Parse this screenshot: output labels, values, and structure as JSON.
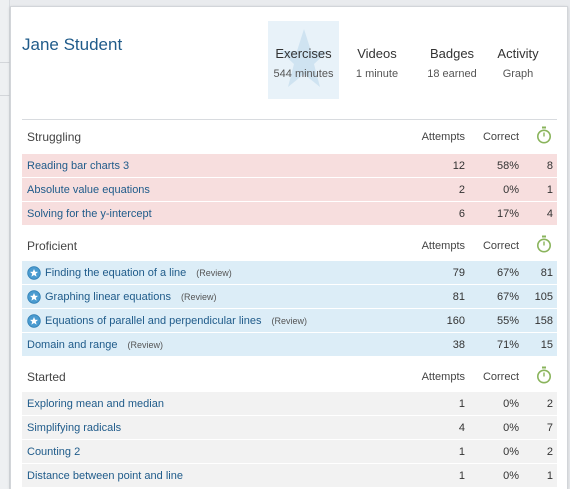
{
  "student": {
    "name": "Jane Student"
  },
  "tabs": [
    {
      "label": "Exercises",
      "sub": "544 minutes",
      "active": true
    },
    {
      "label": "Videos",
      "sub": "1 minute",
      "active": false
    },
    {
      "label": "Badges",
      "sub": "18 earned",
      "active": false
    },
    {
      "label": "Activity",
      "sub": "Graph",
      "active": false
    }
  ],
  "columns": {
    "attempts": "Attempts",
    "correct": "Correct",
    "time_icon": "stopwatch-icon"
  },
  "colors": {
    "struggling": "#f7dede",
    "proficient": "#dcedf7",
    "started": "#f2f2f2",
    "link": "#1f5b8a",
    "stopwatch": "#8ab45c"
  },
  "sections": {
    "struggling": {
      "title": "Struggling",
      "rows": [
        {
          "name": "Reading bar charts 3",
          "review": "",
          "attempts": "12",
          "correct": "58%",
          "time": "8"
        },
        {
          "name": "Absolute value equations",
          "review": "",
          "attempts": "2",
          "correct": "0%",
          "time": "1"
        },
        {
          "name": "Solving for the y-intercept",
          "review": "",
          "attempts": "6",
          "correct": "17%",
          "time": "4"
        }
      ]
    },
    "proficient": {
      "title": "Proficient",
      "rows": [
        {
          "name": "Finding the equation of a line",
          "review": "(Review)",
          "attempts": "79",
          "correct": "67%",
          "time": "81",
          "icon": "star-badge-icon"
        },
        {
          "name": "Graphing linear equations",
          "review": "(Review)",
          "attempts": "81",
          "correct": "67%",
          "time": "105",
          "icon": "star-badge-icon"
        },
        {
          "name": "Equations of parallel and perpendicular lines",
          "review": "(Review)",
          "attempts": "160",
          "correct": "55%",
          "time": "158",
          "icon": "star-badge-icon"
        },
        {
          "name": "Domain and range",
          "review": "(Review)",
          "attempts": "38",
          "correct": "71%",
          "time": "15"
        }
      ]
    },
    "started": {
      "title": "Started",
      "rows": [
        {
          "name": "Exploring mean and median",
          "review": "",
          "attempts": "1",
          "correct": "0%",
          "time": "2"
        },
        {
          "name": "Simplifying radicals",
          "review": "",
          "attempts": "4",
          "correct": "0%",
          "time": "7"
        },
        {
          "name": "Counting 2",
          "review": "",
          "attempts": "1",
          "correct": "0%",
          "time": "2"
        },
        {
          "name": "Distance between point and line",
          "review": "",
          "attempts": "1",
          "correct": "0%",
          "time": "1"
        }
      ]
    }
  }
}
